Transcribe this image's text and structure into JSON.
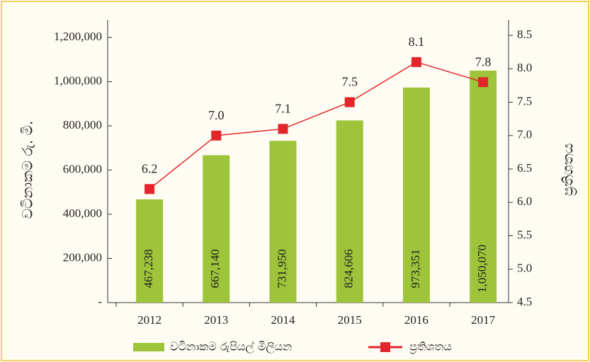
{
  "chart_data": {
    "type": "bar-line",
    "categories": [
      "2012",
      "2013",
      "2014",
      "2015",
      "2016",
      "2017"
    ],
    "series": [
      {
        "name": "වටිනාකම රුපියල් මිලියන",
        "type": "bar",
        "color": "#9dc43a",
        "values": [
          467238,
          667140,
          731950,
          824606,
          973351,
          1050070
        ],
        "value_labels": [
          "467,238",
          "667,140",
          "731,950",
          "824,606",
          "973,351",
          "1,050,070"
        ]
      },
      {
        "name": "ප්‍රතිශතය",
        "type": "line",
        "axis": "y2",
        "color": "#e3262b",
        "values": [
          6.2,
          7.0,
          7.1,
          7.5,
          8.1,
          7.8
        ],
        "value_labels": [
          "6.2",
          "7.0",
          "7.1",
          "7.5",
          "8.1",
          "7.8"
        ]
      }
    ],
    "ylabel": "වටිනාකම රු. මි.",
    "y2label": "ප්‍රතිශතය",
    "ylim": [
      0,
      1200000
    ],
    "yticks": [
      {
        "value": 0,
        "label": "-"
      },
      {
        "value": 200000,
        "label": "200,000"
      },
      {
        "value": 400000,
        "label": "400,000"
      },
      {
        "value": 600000,
        "label": "600,000"
      },
      {
        "value": 800000,
        "label": "800,000"
      },
      {
        "value": 1000000,
        "label": "1,000,000"
      },
      {
        "value": 1200000,
        "label": "1,200,000"
      }
    ],
    "y2lim": [
      4.5,
      8.5
    ],
    "y2ticks": [
      4.5,
      {
        "value": 5,
        "label": "5.0"
      },
      5.5,
      {
        "value": 6,
        "label": "6.0"
      },
      6.5,
      {
        "value": 7,
        "label": "7.0"
      },
      7.5,
      {
        "value": 8,
        "label": "8.0"
      },
      8.5
    ],
    "legend": "bottom"
  }
}
